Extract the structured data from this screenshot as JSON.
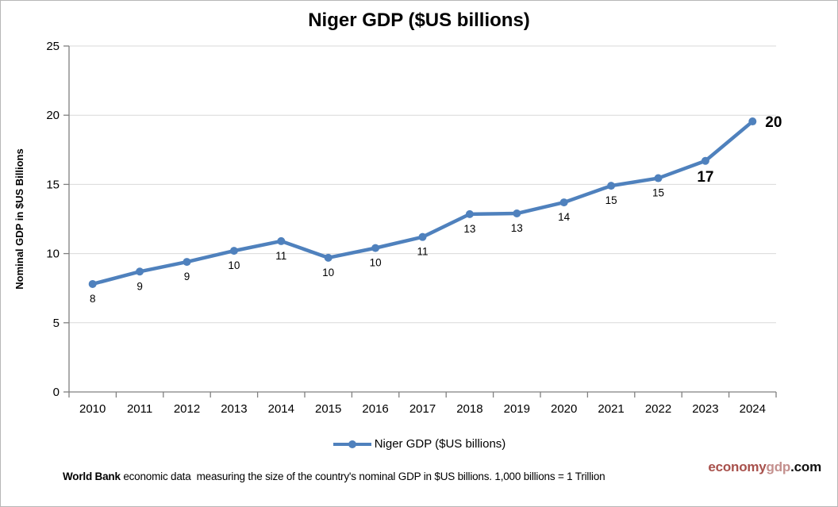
{
  "title": "Niger GDP ($US billions)",
  "chart_data": {
    "type": "line",
    "title": "Niger GDP ($US billions)",
    "x": [
      2010,
      2011,
      2012,
      2013,
      2014,
      2015,
      2016,
      2017,
      2018,
      2019,
      2020,
      2021,
      2022,
      2023,
      2024
    ],
    "series": [
      {
        "name": "Niger GDP ($US billions)",
        "values": [
          7.8,
          8.7,
          9.4,
          10.2,
          10.9,
          9.7,
          10.4,
          11.2,
          12.85,
          12.9,
          13.7,
          14.9,
          15.45,
          16.7,
          19.55
        ]
      }
    ],
    "point_labels": [
      {
        "t": "8"
      },
      {
        "t": "9"
      },
      {
        "t": "9"
      },
      {
        "t": "10"
      },
      {
        "t": "11"
      },
      {
        "t": "10"
      },
      {
        "t": "10"
      },
      {
        "t": "11"
      },
      {
        "t": "13"
      },
      {
        "t": "13"
      },
      {
        "t": "14"
      },
      {
        "t": "15"
      },
      {
        "t": "15"
      },
      {
        "t": "17",
        "bold": true,
        "dy": 26
      },
      {
        "t": "20",
        "bold": true,
        "dx": 16,
        "dy": 7,
        "anchor": "start"
      }
    ],
    "xlabel": "",
    "ylabel": "Nominal GDP in $US Billions",
    "ylim": [
      0,
      25
    ],
    "yticks": [
      0,
      5,
      10,
      15,
      20,
      25
    ],
    "grid": true,
    "legend_position": "bottom",
    "line_color": "#4F81BD",
    "grid_color": "#D9D9D9",
    "axis_color": "#808080"
  },
  "legend": {
    "label": "Niger GDP ($US billions)"
  },
  "footer": {
    "bold_text": "World Bank",
    "rest_text": " economic data  measuring the size of the country's nominal GDP in $US billions. 1,000 billions = 1 Trillion"
  },
  "branding": {
    "part1": "economy",
    "part2": "gdp",
    "part3": ".com",
    "color1": "#A8514C",
    "color2": "#C4908E",
    "color3": "#111111"
  }
}
